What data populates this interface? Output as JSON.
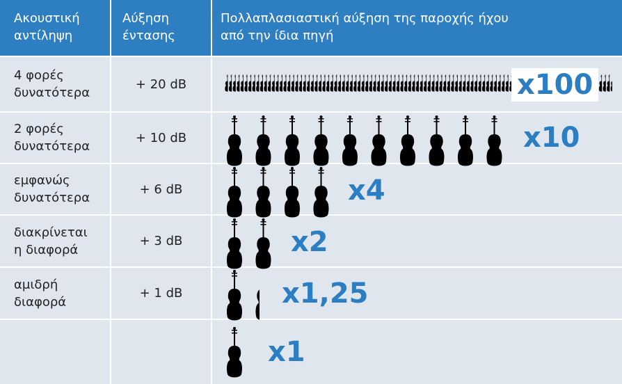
{
  "header": {
    "perception": [
      "Ακουστική",
      "αντίληψη"
    ],
    "gain": [
      "Αύξηση",
      "έντασης"
    ],
    "multiplier": [
      "Πολλαπλασιαστική αύξηση της παροχής ήχου",
      "από την ίδια πηγή"
    ]
  },
  "rows": [
    {
      "perception": [
        "4 φορές",
        "δυνατότερα"
      ],
      "gain": "+ 20 dB",
      "multiplier": "x100"
    },
    {
      "perception": [
        "2 φορές",
        "δυνατότερα"
      ],
      "gain": "+ 10 dB",
      "multiplier": "x10"
    },
    {
      "perception": [
        "εμφανώς",
        "δυνατότερα"
      ],
      "gain": "+ 6 dB",
      "multiplier": "x4"
    },
    {
      "perception": [
        "διακρίνεται",
        "η διαφορά"
      ],
      "gain": "+ 3 dB",
      "multiplier": "x2"
    },
    {
      "perception": [
        "αμιδρή",
        "διαφορά"
      ],
      "gain": "+ 1 dB",
      "multiplier": "x1,25"
    },
    {
      "multiplier": "x1"
    }
  ]
}
